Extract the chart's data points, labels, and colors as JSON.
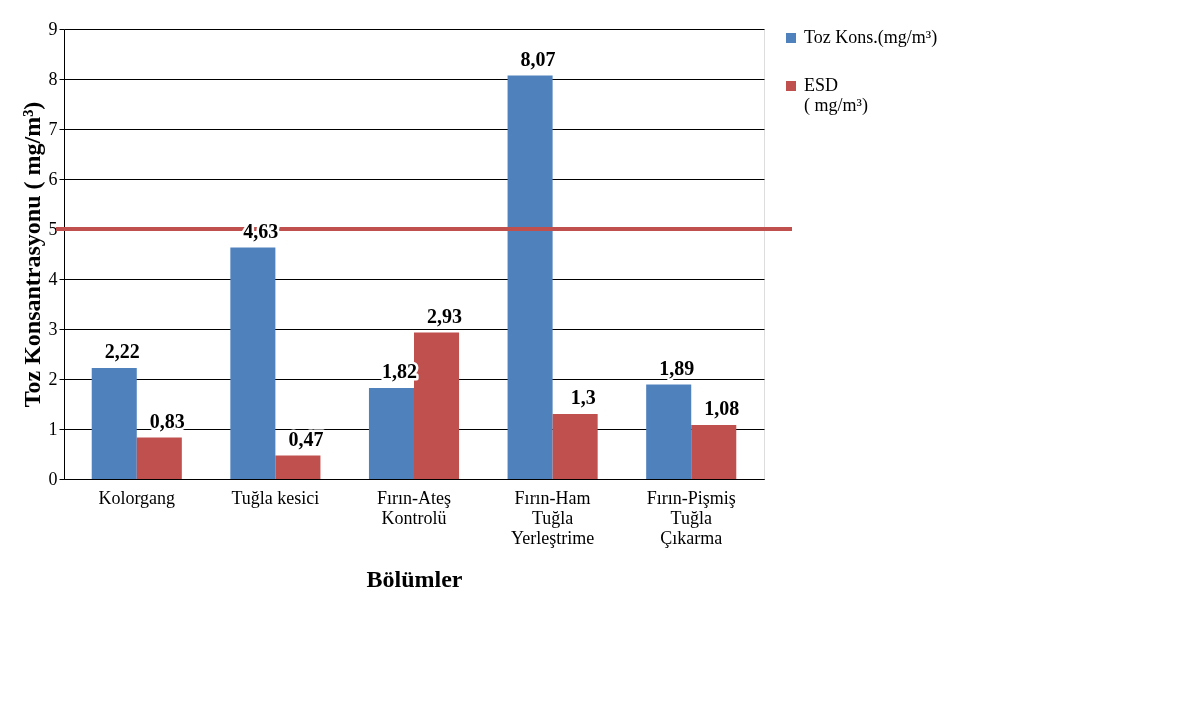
{
  "chart_data": {
    "type": "bar",
    "xlabel": "Bölümler",
    "ylabel": "Toz Konsantrasyonu ( mg/m³)",
    "categories": [
      "Kolorgang",
      "Tuğla kesici",
      "Fırın-Ateş\nKontrolü",
      "Fırın-Ham\nTuğla\nYerleştrime",
      "Fırın-Pişmiş\nTuğla\nÇıkarma"
    ],
    "series": [
      {
        "name": "Toz Kons.(mg/m³)",
        "color": "#4f81bd",
        "values": [
          2.22,
          4.63,
          1.82,
          8.07,
          1.89
        ],
        "value_labels": [
          "2,22",
          "4,63",
          "1,82",
          "8,07",
          "1,89"
        ]
      },
      {
        "name": "ESD\n( mg/m³)",
        "color": "#c0504d",
        "values": [
          0.83,
          0.47,
          2.93,
          1.3,
          1.08
        ],
        "value_labels": [
          "0,83",
          "0,47",
          "2,93",
          "1,3",
          "1,08"
        ]
      }
    ],
    "ylim": [
      0,
      9
    ],
    "yticks": [
      0,
      1,
      2,
      3,
      4,
      5,
      6,
      7,
      8,
      9
    ],
    "grid": "y",
    "legend": "right",
    "ref_lines": [
      {
        "axis": "y",
        "value": 5,
        "color": "#c0504d"
      }
    ]
  }
}
